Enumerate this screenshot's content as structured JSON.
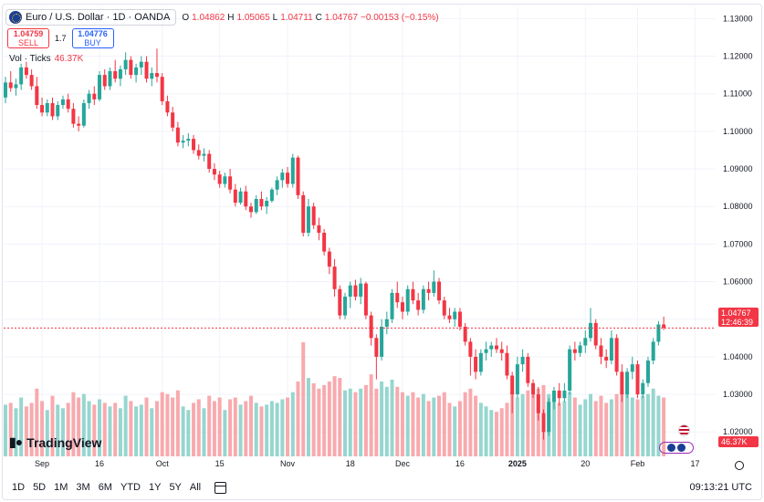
{
  "header": {
    "symbol_title": "Euro / U.S. Dollar · 1D · OANDA",
    "open_label": "O",
    "open": "1.04862",
    "high_label": "H",
    "high": "1.05065",
    "low_label": "L",
    "low": "1.04711",
    "close_label": "C",
    "close": "1.04767",
    "change": "−0.00153 (−0.15%)"
  },
  "trade": {
    "sell_price": "1.04759",
    "sell_label": "SELL",
    "spread": "1.7",
    "buy_price": "1.04776",
    "buy_label": "BUY"
  },
  "volume_legend": {
    "label": "Vol · Ticks",
    "value": "46.37K"
  },
  "branding": {
    "logo_text": "TradingView"
  },
  "price_tag": {
    "price": "1.04767",
    "countdown": "12:46:39"
  },
  "volume_tag": "46.37K",
  "bottom_bar": {
    "timeframes": [
      "1D",
      "5D",
      "1M",
      "3M",
      "6M",
      "YTD",
      "1Y",
      "5Y",
      "All"
    ],
    "clock": "09:13:21 UTC"
  },
  "colors": {
    "up": "#26a69a",
    "down": "#f23645",
    "vol_up": "#96d6cf",
    "vol_down": "#f8aaae",
    "grid": "#f0f3fa"
  },
  "chart_data": {
    "type": "candlestick",
    "price_axis_ticks": [
      "1.13000",
      "1.12000",
      "1.11000",
      "1.10000",
      "1.09000",
      "1.08000",
      "1.07000",
      "1.06000",
      "1.05000",
      "1.04000",
      "1.03000",
      "1.02000"
    ],
    "ylim": [
      1.0135,
      1.133
    ],
    "time_axis_labels": [
      {
        "label": "Sep",
        "index": 7
      },
      {
        "label": "16",
        "index": 18
      },
      {
        "label": "Oct",
        "index": 30
      },
      {
        "label": "15",
        "index": 41
      },
      {
        "label": "Nov",
        "index": 54
      },
      {
        "label": "18",
        "index": 66
      },
      {
        "label": "Dec",
        "index": 76
      },
      {
        "label": "16",
        "index": 87
      },
      {
        "label": "2025",
        "index": 98
      },
      {
        "label": "20",
        "index": 111
      },
      {
        "label": "Feb",
        "index": 121
      },
      {
        "label": "17",
        "index": 132
      }
    ],
    "grid": true,
    "last_price": 1.04767,
    "candles": [
      [
        1.109,
        1.1145,
        1.1075,
        1.113,
        29
      ],
      [
        1.113,
        1.116,
        1.1105,
        1.1115,
        30
      ],
      [
        1.1115,
        1.114,
        1.1095,
        1.1125,
        27
      ],
      [
        1.1125,
        1.118,
        1.111,
        1.117,
        33
      ],
      [
        1.117,
        1.1185,
        1.114,
        1.115,
        28
      ],
      [
        1.115,
        1.1165,
        1.111,
        1.112,
        30
      ],
      [
        1.112,
        1.1145,
        1.106,
        1.107,
        38
      ],
      [
        1.107,
        1.109,
        1.104,
        1.105,
        31
      ],
      [
        1.105,
        1.1085,
        1.104,
        1.1075,
        26
      ],
      [
        1.1075,
        1.109,
        1.103,
        1.104,
        34
      ],
      [
        1.104,
        1.108,
        1.103,
        1.107,
        29
      ],
      [
        1.107,
        1.1095,
        1.106,
        1.1085,
        27
      ],
      [
        1.1085,
        1.11,
        1.105,
        1.106,
        30
      ],
      [
        1.106,
        1.1075,
        1.101,
        1.102,
        36
      ],
      [
        1.102,
        1.104,
        1.1,
        1.1015,
        33
      ],
      [
        1.1015,
        1.1085,
        1.101,
        1.1075,
        35
      ],
      [
        1.1075,
        1.111,
        1.106,
        1.11,
        31
      ],
      [
        1.11,
        1.112,
        1.107,
        1.1085,
        29
      ],
      [
        1.1085,
        1.116,
        1.108,
        1.115,
        32
      ],
      [
        1.115,
        1.1165,
        1.111,
        1.112,
        30
      ],
      [
        1.112,
        1.117,
        1.111,
        1.116,
        28
      ],
      [
        1.116,
        1.119,
        1.113,
        1.114,
        30
      ],
      [
        1.114,
        1.1175,
        1.112,
        1.1165,
        27
      ],
      [
        1.1165,
        1.121,
        1.115,
        1.119,
        34
      ],
      [
        1.119,
        1.12,
        1.114,
        1.115,
        31
      ],
      [
        1.115,
        1.118,
        1.113,
        1.117,
        28
      ],
      [
        1.117,
        1.12,
        1.115,
        1.1185,
        29
      ],
      [
        1.1185,
        1.12,
        1.113,
        1.114,
        33
      ],
      [
        1.114,
        1.117,
        1.112,
        1.1155,
        27
      ],
      [
        1.1155,
        1.122,
        1.113,
        1.1145,
        31
      ],
      [
        1.1145,
        1.1155,
        1.107,
        1.108,
        36
      ],
      [
        1.108,
        1.1095,
        1.104,
        1.105,
        35
      ],
      [
        1.105,
        1.1065,
        1.1,
        1.101,
        33
      ],
      [
        1.101,
        1.1025,
        1.096,
        1.097,
        37
      ],
      [
        1.097,
        1.099,
        1.0955,
        1.0975,
        28
      ],
      [
        1.0975,
        1.0995,
        1.096,
        1.098,
        26
      ],
      [
        1.098,
        1.099,
        1.094,
        1.095,
        30
      ],
      [
        1.095,
        1.0965,
        1.0925,
        1.0935,
        32
      ],
      [
        1.0935,
        1.0955,
        1.092,
        1.094,
        27
      ],
      [
        1.094,
        1.095,
        1.089,
        1.09,
        34
      ],
      [
        1.09,
        1.0915,
        1.087,
        1.0885,
        31
      ],
      [
        1.0885,
        1.0895,
        1.085,
        1.086,
        33
      ],
      [
        1.086,
        1.089,
        1.085,
        1.088,
        26
      ],
      [
        1.088,
        1.09,
        1.0835,
        1.0845,
        32
      ],
      [
        1.0845,
        1.086,
        1.08,
        1.081,
        33
      ],
      [
        1.081,
        1.085,
        1.0805,
        1.084,
        29
      ],
      [
        1.084,
        1.0855,
        1.079,
        1.08,
        31
      ],
      [
        1.08,
        1.081,
        1.077,
        1.0785,
        34
      ],
      [
        1.0785,
        1.083,
        1.078,
        1.082,
        30
      ],
      [
        1.082,
        1.084,
        1.079,
        1.08,
        28
      ],
      [
        1.08,
        1.0825,
        1.078,
        1.0815,
        29
      ],
      [
        1.0815,
        1.085,
        1.081,
        1.0845,
        31
      ],
      [
        1.0845,
        1.088,
        1.083,
        1.087,
        30
      ],
      [
        1.087,
        1.09,
        1.085,
        1.089,
        32
      ],
      [
        1.089,
        1.0905,
        1.085,
        1.086,
        33
      ],
      [
        1.086,
        1.094,
        1.085,
        1.093,
        36
      ],
      [
        1.093,
        1.0935,
        1.082,
        1.083,
        42
      ],
      [
        1.083,
        1.084,
        1.072,
        1.073,
        64
      ],
      [
        1.073,
        1.082,
        1.072,
        1.08,
        44
      ],
      [
        1.08,
        1.081,
        1.074,
        1.075,
        41
      ],
      [
        1.075,
        1.077,
        1.071,
        1.073,
        38
      ],
      [
        1.073,
        1.074,
        1.067,
        1.068,
        40
      ],
      [
        1.068,
        1.069,
        1.062,
        1.064,
        42
      ],
      [
        1.064,
        1.066,
        1.056,
        1.058,
        45
      ],
      [
        1.058,
        1.059,
        1.05,
        1.051,
        44
      ],
      [
        1.051,
        1.057,
        1.05,
        1.056,
        37
      ],
      [
        1.056,
        1.06,
        1.053,
        1.059,
        38
      ],
      [
        1.059,
        1.0605,
        1.055,
        1.056,
        36
      ],
      [
        1.056,
        1.061,
        1.054,
        1.0595,
        38
      ],
      [
        1.0595,
        1.06,
        1.05,
        1.051,
        40
      ],
      [
        1.051,
        1.052,
        1.043,
        1.045,
        46
      ],
      [
        1.045,
        1.046,
        1.034,
        1.04,
        38
      ],
      [
        1.04,
        1.05,
        1.039,
        1.048,
        42
      ],
      [
        1.048,
        1.052,
        1.046,
        1.05,
        39
      ],
      [
        1.05,
        1.058,
        1.049,
        1.057,
        43
      ],
      [
        1.057,
        1.06,
        1.053,
        1.0545,
        39
      ],
      [
        1.0545,
        1.056,
        1.05,
        1.052,
        36
      ],
      [
        1.052,
        1.059,
        1.051,
        1.058,
        34
      ],
      [
        1.058,
        1.06,
        1.054,
        1.055,
        36
      ],
      [
        1.055,
        1.057,
        1.051,
        1.0525,
        33
      ],
      [
        1.0525,
        1.059,
        1.0515,
        1.058,
        35
      ],
      [
        1.058,
        1.06,
        1.055,
        1.057,
        31
      ],
      [
        1.057,
        1.063,
        1.056,
        1.06,
        33
      ],
      [
        1.06,
        1.061,
        1.054,
        1.055,
        34
      ],
      [
        1.055,
        1.056,
        1.05,
        1.051,
        36
      ],
      [
        1.051,
        1.053,
        1.049,
        1.05,
        30
      ],
      [
        1.05,
        1.053,
        1.048,
        1.052,
        28
      ],
      [
        1.052,
        1.053,
        1.047,
        1.048,
        31
      ],
      [
        1.048,
        1.049,
        1.043,
        1.044,
        36
      ],
      [
        1.044,
        1.045,
        1.035,
        1.04,
        38
      ],
      [
        1.04,
        1.042,
        1.034,
        1.036,
        34
      ],
      [
        1.036,
        1.042,
        1.035,
        1.041,
        30
      ],
      [
        1.041,
        1.044,
        1.039,
        1.042,
        28
      ],
      [
        1.042,
        1.044,
        1.04,
        1.043,
        26
      ],
      [
        1.043,
        1.045,
        1.041,
        1.042,
        25
      ],
      [
        1.042,
        1.044,
        1.039,
        1.041,
        27
      ],
      [
        1.041,
        1.043,
        1.034,
        1.035,
        30
      ],
      [
        1.035,
        1.036,
        1.025,
        1.03,
        36
      ],
      [
        1.03,
        1.04,
        1.029,
        1.038,
        33
      ],
      [
        1.038,
        1.042,
        1.036,
        1.04,
        35
      ],
      [
        1.04,
        1.041,
        1.032,
        1.033,
        37
      ],
      [
        1.033,
        1.034,
        1.029,
        1.03,
        36
      ],
      [
        1.03,
        1.032,
        1.023,
        1.025,
        38
      ],
      [
        1.025,
        1.026,
        1.018,
        1.02,
        40
      ],
      [
        1.02,
        1.029,
        1.019,
        1.028,
        35
      ],
      [
        1.028,
        1.032,
        1.026,
        1.031,
        32
      ],
      [
        1.031,
        1.033,
        1.027,
        1.029,
        30
      ],
      [
        1.029,
        1.033,
        1.028,
        1.031,
        31
      ],
      [
        1.031,
        1.043,
        1.03,
        1.042,
        36
      ],
      [
        1.042,
        1.044,
        1.039,
        1.041,
        33
      ],
      [
        1.041,
        1.044,
        1.04,
        1.043,
        29
      ],
      [
        1.043,
        1.047,
        1.041,
        1.045,
        32
      ],
      [
        1.045,
        1.053,
        1.044,
        1.049,
        35
      ],
      [
        1.049,
        1.05,
        1.042,
        1.043,
        31
      ],
      [
        1.043,
        1.045,
        1.038,
        1.04,
        34
      ],
      [
        1.04,
        1.042,
        1.037,
        1.039,
        30
      ],
      [
        1.039,
        1.047,
        1.038,
        1.045,
        32
      ],
      [
        1.045,
        1.046,
        1.035,
        1.036,
        35
      ],
      [
        1.036,
        1.038,
        1.028,
        1.03,
        38
      ],
      [
        1.03,
        1.037,
        1.029,
        1.036,
        36
      ],
      [
        1.036,
        1.04,
        1.034,
        1.038,
        33
      ],
      [
        1.038,
        1.039,
        1.029,
        1.03,
        32
      ],
      [
        1.03,
        1.034,
        1.029,
        1.033,
        34
      ],
      [
        1.033,
        1.04,
        1.032,
        1.039,
        35
      ],
      [
        1.039,
        1.045,
        1.038,
        1.044,
        38
      ],
      [
        1.044,
        1.0495,
        1.043,
        1.0486,
        34
      ],
      [
        1.0486,
        1.0507,
        1.0471,
        1.0477,
        33
      ]
    ]
  }
}
